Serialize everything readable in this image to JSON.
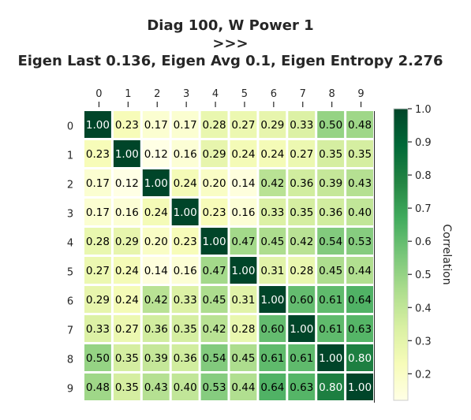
{
  "chart_data": {
    "type": "heatmap",
    "title_lines": [
      "Diag 100, W Power 1",
      ">>>",
      "Eigen Last 0.136, Eigen Avg 0.1, Eigen Entropy 2.276"
    ],
    "x_labels": [
      "0",
      "1",
      "2",
      "3",
      "4",
      "5",
      "6",
      "7",
      "8",
      "9"
    ],
    "y_labels": [
      "0",
      "1",
      "2",
      "3",
      "4",
      "5",
      "6",
      "7",
      "8",
      "9"
    ],
    "values": [
      [
        1.0,
        0.23,
        0.17,
        0.17,
        0.28,
        0.27,
        0.29,
        0.33,
        0.5,
        0.48
      ],
      [
        0.23,
        1.0,
        0.12,
        0.16,
        0.29,
        0.24,
        0.24,
        0.27,
        0.35,
        0.35
      ],
      [
        0.17,
        0.12,
        1.0,
        0.24,
        0.2,
        0.14,
        0.42,
        0.36,
        0.39,
        0.43
      ],
      [
        0.17,
        0.16,
        0.24,
        1.0,
        0.23,
        0.16,
        0.33,
        0.35,
        0.36,
        0.4
      ],
      [
        0.28,
        0.29,
        0.2,
        0.23,
        1.0,
        0.47,
        0.45,
        0.42,
        0.54,
        0.53
      ],
      [
        0.27,
        0.24,
        0.14,
        0.16,
        0.47,
        1.0,
        0.31,
        0.28,
        0.45,
        0.44
      ],
      [
        0.29,
        0.24,
        0.42,
        0.33,
        0.45,
        0.31,
        1.0,
        0.6,
        0.61,
        0.64
      ],
      [
        0.33,
        0.27,
        0.36,
        0.35,
        0.42,
        0.28,
        0.6,
        1.0,
        0.61,
        0.63
      ],
      [
        0.5,
        0.35,
        0.39,
        0.36,
        0.54,
        0.45,
        0.61,
        0.61,
        1.0,
        0.8
      ],
      [
        0.48,
        0.35,
        0.43,
        0.4,
        0.53,
        0.44,
        0.64,
        0.63,
        0.8,
        1.0
      ]
    ],
    "value_format": "2 decimals",
    "colormap": "YlGn",
    "color_range": [
      0.12,
      1.0
    ],
    "colorbar": {
      "label": "Correlation",
      "ticks": [
        "0.2",
        "0.3",
        "0.4",
        "0.5",
        "0.6",
        "0.7",
        "0.8",
        "0.9",
        "1.0"
      ],
      "tick_values": [
        0.2,
        0.3,
        0.4,
        0.5,
        0.6,
        0.7,
        0.8,
        0.9,
        1.0
      ]
    },
    "x_axis_position": "top",
    "grid": false
  }
}
